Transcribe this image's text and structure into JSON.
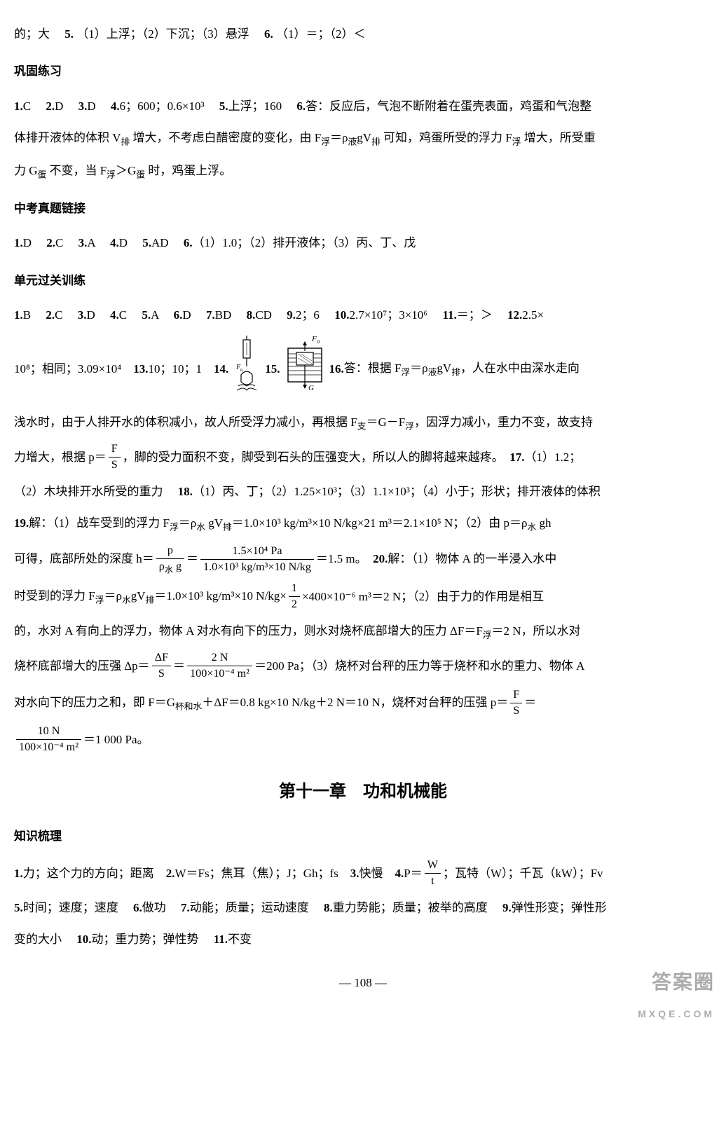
{
  "top_line": {
    "prefix": "的；大　",
    "a5": "5.",
    "a5_text": "（1）上浮；（2）下沉；（3）悬浮　",
    "a6": "6.",
    "a6_text": "（1）＝；（2）＜"
  },
  "section1": {
    "heading": "巩固练习",
    "line1": {
      "a1": "1.",
      "a1v": "C　",
      "a2": "2.",
      "a2v": "D　",
      "a3": "3.",
      "a3v": "D　",
      "a4": "4.",
      "a4v": "6；600；0.6×10³　",
      "a5": "5.",
      "a5v": "上浮；160　",
      "a6": "6.",
      "a6v": "答：反应后，气泡不断附着在蛋壳表面，鸡蛋和气泡整"
    },
    "line2": "体排开液体的体积 V<sub>排</sub> 增大，不考虑白醋密度的变化，由 F<sub>浮</sub>＝ρ<sub>液</sub>gV<sub>排</sub> 可知，鸡蛋所受的浮力 F<sub>浮</sub> 增大，所受重",
    "line3": "力 G<sub>蛋</sub> 不变，当 F<sub>浮</sub>＞G<sub>蛋</sub> 时，鸡蛋上浮。"
  },
  "section2": {
    "heading": "中考真题链接",
    "line1": {
      "a1": "1.",
      "a1v": "D　",
      "a2": "2.",
      "a2v": "C　",
      "a3": "3.",
      "a3v": "A　",
      "a4": "4.",
      "a4v": "D　",
      "a5": "5.",
      "a5v": "AD　",
      "a6": "6.",
      "a6v": "（1）1.0；（2）排开液体；（3）丙、丁、戊"
    }
  },
  "section3": {
    "heading": "单元过关训练",
    "l1": {
      "a1": "1.",
      "a1v": "B　",
      "a2": "2.",
      "a2v": "C　",
      "a3": "3.",
      "a3v": "D　",
      "a4": "4.",
      "a4v": "C　",
      "a5": "5.",
      "a5v": "A　",
      "a6": "6.",
      "a6v": "D　",
      "a7": "7.",
      "a7v": "BD　",
      "a8": "8.",
      "a8v": "CD　",
      "a9": "9.",
      "a9v": "2；6　",
      "a10": "10.",
      "a10v": "2.7×10⁷；3×10⁶　",
      "a11": "11.",
      "a11v": "＝；＞　",
      "a12": "12.",
      "a12v": "2.5×"
    },
    "l2": {
      "pre": "10⁸；相同；3.09×10⁴　",
      "a13": "13.",
      "a13v": "10；10；1　",
      "a14": "14.",
      "a15": "15.",
      "a16": "16.",
      "a16v": "答：根据 F<sub>浮</sub>＝ρ<sub>液</sub>gV<sub>排</sub>，人在水中由深水走向"
    },
    "l3": "浅水时，由于人排开水的体积减小，故人所受浮力减小，再根据 F<sub>支</sub>＝G－F<sub>浮</sub>，因浮力减小，重力不变，故支持",
    "l4a": "力增大，根据 p＝",
    "l4b": "，脚的受力面积不变，脚受到石头的压强变大，所以人的脚将越来越疼。　",
    "a17": "17.",
    "a17v": "（1）1.2；",
    "l5": {
      "pre": "（2）木块排开水所受的重力　",
      "a18": "18.",
      "a18v": "（1）丙、丁；（2）1.25×10³；（3）1.1×10³；（4）小于；形状；排开液体的体积"
    },
    "l6": {
      "a19": "19.",
      "a19v": "解：（1）战车受到的浮力 F<sub>浮</sub>＝ρ<sub>水</sub> gV<sub>排</sub>＝1.0×10³ kg/m³×10 N/kg×21 m³＝2.1×10⁵ N；（2）由 p＝ρ<sub>水</sub> gh"
    },
    "l7a": "可得，底部所处的深度 h＝",
    "l7b": "＝",
    "l7c": "＝1.5 m。　",
    "a20": "20.",
    "a20v": "解：（1）物体 A 的一半浸入水中",
    "l8a": "时受到的浮力 F<sub>浮</sub>＝ρ<sub>水</sub>gV<sub>排</sub>＝1.0×10³ kg/m³×10 N/kg×",
    "l8b": "×400×10⁻⁶ m³＝2 N；（2）由于力的作用是相互",
    "l9": "的，水对 A 有向上的浮力，物体 A 对水有向下的压力，则水对烧杯底部增大的压力 ΔF＝F<sub>浮</sub>＝2 N，所以水对",
    "l10a": "烧杯底部增大的压强 Δp＝",
    "l10b": "＝",
    "l10c": "＝200 Pa；（3）烧杯对台秤的压力等于烧杯和水的重力、物体 A",
    "l11a": "对水向下的压力之和，即 F＝G<sub>杯和水</sub>＋ΔF＝0.8 kg×10 N/kg＋2 N＝10 N，烧杯对台秤的压强 p＝",
    "l11b": "＝",
    "l12a": "＝1 000 Pa。",
    "frac1_num": "F",
    "frac1_den": "S",
    "frac2_num": "p",
    "frac2_den": "ρ<sub>水</sub> g",
    "frac3_num": "1.5×10⁴ Pa",
    "frac3_den": "1.0×10³ kg/m³×10 N/kg",
    "frac4_num": "1",
    "frac4_den": "2",
    "frac5_num": "ΔF",
    "frac5_den": "S",
    "frac6_num": "2 N",
    "frac6_den": "100×10⁻⁴ m²",
    "frac7_num": "F",
    "frac7_den": "S",
    "frac8_num": "10 N",
    "frac8_den": "100×10⁻⁴ m²"
  },
  "chapter": {
    "title": "第十一章　功和机械能",
    "sub": "知识梳理",
    "l1": {
      "a1": "1.",
      "a1v": "力；这个力的方向；距离　",
      "a2": "2.",
      "a2v": "W＝Fs；焦耳（焦）；J；Gh；fs　",
      "a3": "3.",
      "a3v": "快慢　",
      "a4": "4.",
      "a4a": "P＝",
      "a4b": "；瓦特（W）；千瓦（kW）；Fv"
    },
    "l2": {
      "a5": "5.",
      "a5v": "时间；速度；速度　",
      "a6": "6.",
      "a6v": "做功　",
      "a7": "7.",
      "a7v": "动能；质量；运动速度　",
      "a8": "8.",
      "a8v": "重力势能；质量；被举的高度　",
      "a9": "9.",
      "a9v": "弹性形变；弹性形"
    },
    "l3": {
      "pre": "变的大小　",
      "a10": "10.",
      "a10v": "动；重力势；弹性势　",
      "a11": "11.",
      "a11v": "不变"
    },
    "fracP_num": "W",
    "fracP_den": "t"
  },
  "page_number": "— 108 —",
  "watermark": {
    "line1": "答案圈",
    "line2": "MXQE.COM"
  },
  "diagram14": {
    "label_fn": "F<sub>n</sub>"
  },
  "diagram15": {
    "label_f": "F<sub>σ</sub>",
    "label_g": "G"
  },
  "colors": {
    "text": "#000000",
    "bg": "#ffffff",
    "wm": "#888888"
  }
}
